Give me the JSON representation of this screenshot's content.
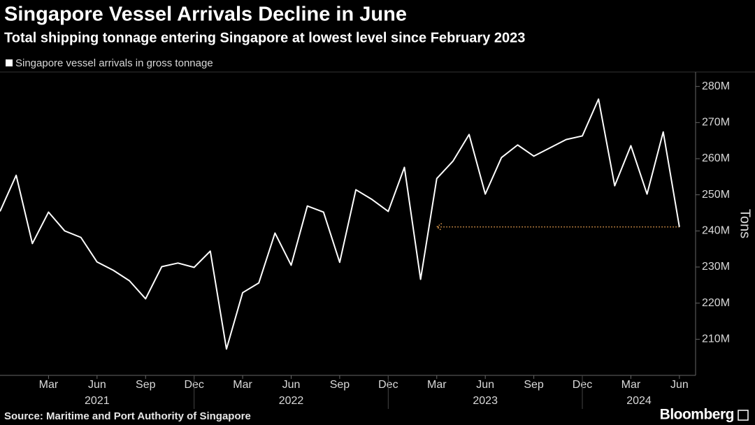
{
  "chart_data": {
    "type": "line",
    "title": "Singapore Vessel Arrivals Decline in June",
    "subtitle": "Total shipping tonnage entering Singapore at lowest level since February 2023",
    "y_axis_label": "Tons",
    "source": "Source: Maritime and Port Authority of Singapore",
    "brand": "Bloomberg",
    "x": [
      "2020-12",
      "2021-01",
      "2021-02",
      "2021-03",
      "2021-04",
      "2021-05",
      "2021-06",
      "2021-07",
      "2021-08",
      "2021-09",
      "2021-10",
      "2021-11",
      "2021-12",
      "2022-01",
      "2022-02",
      "2022-03",
      "2022-04",
      "2022-05",
      "2022-06",
      "2022-07",
      "2022-08",
      "2022-09",
      "2022-10",
      "2022-11",
      "2022-12",
      "2023-01",
      "2023-02",
      "2023-03",
      "2023-04",
      "2023-05",
      "2023-06",
      "2023-07",
      "2023-08",
      "2023-09",
      "2023-10",
      "2023-11",
      "2023-12",
      "2024-01",
      "2024-02",
      "2024-03",
      "2024-04",
      "2024-05",
      "2024-06"
    ],
    "series": [
      {
        "name": "Singapore vessel arrivals in gross tonnage",
        "color": "#ffffff",
        "values": [
          245.4,
          255.4,
          236.5,
          245.2,
          240,
          238.2,
          231.4,
          229.1,
          226.2,
          221.2,
          230.1,
          231.1,
          229.9,
          234.4,
          207.3,
          222.9,
          225.6,
          239.4,
          230.5,
          246.9,
          245.2,
          231.3,
          251.4,
          248.7,
          245.4,
          257.6,
          226.6,
          254.5,
          259.3,
          266.7,
          250.2,
          260.3,
          263.8,
          260.7,
          263,
          265.3,
          266.3,
          276.5,
          252.5,
          263.6,
          250.2,
          267.4,
          241.1
        ]
      }
    ],
    "xlim": [
      "2020-12",
      "2024-07"
    ],
    "xticks": [
      {
        "value": "2021-03",
        "label": "Mar"
      },
      {
        "value": "2021-06",
        "label": "Jun"
      },
      {
        "value": "2021-09",
        "label": "Sep"
      },
      {
        "value": "2021-12",
        "label": "Dec"
      },
      {
        "value": "2022-03",
        "label": "Mar"
      },
      {
        "value": "2022-06",
        "label": "Jun"
      },
      {
        "value": "2022-09",
        "label": "Sep"
      },
      {
        "value": "2022-12",
        "label": "Dec"
      },
      {
        "value": "2023-03",
        "label": "Mar"
      },
      {
        "value": "2023-06",
        "label": "Jun"
      },
      {
        "value": "2023-09",
        "label": "Sep"
      },
      {
        "value": "2023-12",
        "label": "Dec"
      },
      {
        "value": "2024-03",
        "label": "Mar"
      },
      {
        "value": "2024-06",
        "label": "Jun"
      }
    ],
    "years": [
      2021,
      2022,
      2023,
      2024
    ],
    "ylim": [
      200,
      284
    ],
    "yticks": [
      {
        "value": 210,
        "label": "210M"
      },
      {
        "value": 220,
        "label": "220M"
      },
      {
        "value": 230,
        "label": "230M"
      },
      {
        "value": 240,
        "label": "240M"
      },
      {
        "value": 250,
        "label": "250M"
      },
      {
        "value": 260,
        "label": "260M"
      },
      {
        "value": 270,
        "label": "270M"
      },
      {
        "value": 280,
        "label": "280M"
      }
    ],
    "annotation_arrow": {
      "from": "2024-06",
      "to": "2023-03",
      "color": "#e8a050"
    }
  }
}
